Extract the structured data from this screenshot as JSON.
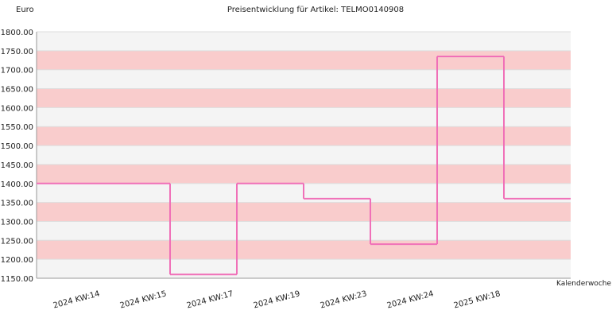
{
  "chart_data": {
    "type": "step",
    "title": "Preisentwicklung für Artikel: TELMO0140908",
    "y_label": "Euro",
    "x_label": "Kalenderwoche",
    "categories": [
      "2024 KW:14",
      "2024 KW:15",
      "2024 KW:17",
      "2024 KW:19",
      "2024 KW:23",
      "2024 KW:24",
      "2025 KW:18"
    ],
    "values": [
      1400,
      1160,
      1400,
      1360,
      1240,
      1735,
      1360
    ],
    "color": "#f070b8",
    "band_colors": [
      "#f4f4f4",
      "#f9cccc"
    ],
    "ylim": [
      1150,
      1800
    ],
    "yticks": [
      {
        "value": 1150,
        "label": "1150.00"
      },
      {
        "value": 1200,
        "label": "1200.00"
      },
      {
        "value": 1250,
        "label": "1250.00"
      },
      {
        "value": 1300,
        "label": "1300.00"
      },
      {
        "value": 1350,
        "label": "1350.00"
      },
      {
        "value": 1400,
        "label": "1400.00"
      },
      {
        "value": 1450,
        "label": "1450.00"
      },
      {
        "value": 1500,
        "label": "1500.00"
      },
      {
        "value": 1550,
        "label": "1550.00"
      },
      {
        "value": 1600,
        "label": "1600.00"
      },
      {
        "value": 1650,
        "label": "1650.00"
      },
      {
        "value": 1700,
        "label": "1700.00"
      },
      {
        "value": 1750,
        "label": "1750.00"
      },
      {
        "value": 1800,
        "label": "1800.00"
      }
    ]
  }
}
